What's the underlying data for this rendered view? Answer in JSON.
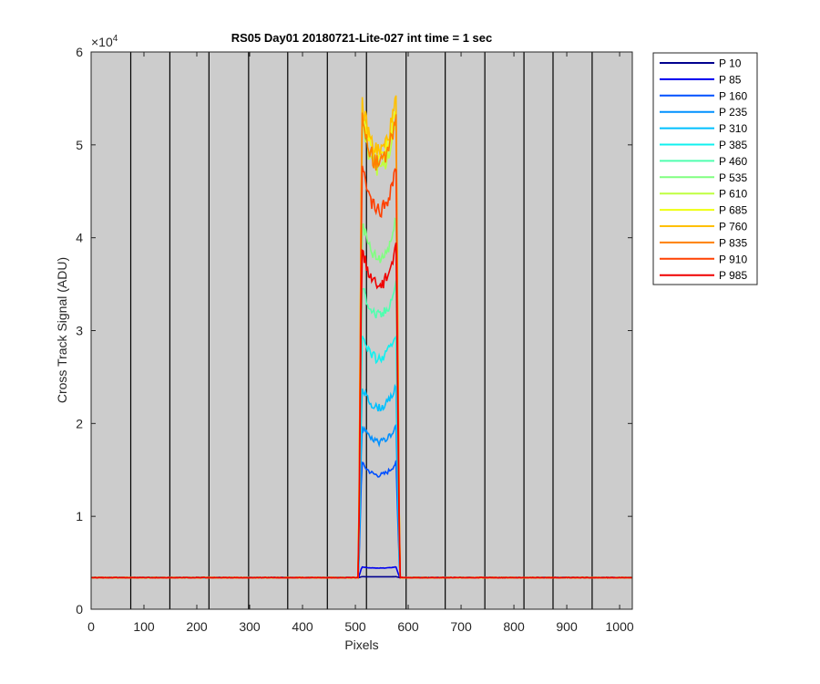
{
  "chart_data": {
    "type": "line",
    "title": "RS05 Day01 20180721-Lite-027 int time = 1 sec",
    "xlabel": "Pixels",
    "ylabel": "Cross Track Signal (ADU)",
    "xlim": [
      0,
      1024
    ],
    "ylim": [
      0,
      60000
    ],
    "xticks": [
      0,
      100,
      200,
      300,
      400,
      500,
      600,
      700,
      800,
      900,
      1000
    ],
    "yticks": [
      0,
      10000,
      20000,
      30000,
      40000,
      50000,
      60000
    ],
    "ytick_labels": [
      "0",
      "1",
      "2",
      "3",
      "4",
      "5",
      "6"
    ],
    "y_exponent_label": "×10",
    "y_exponent_power": "4",
    "background_color": "#cccccc",
    "grid": false,
    "legend_position": "outside-right",
    "vertical_lines_x": [
      75,
      149,
      223,
      298,
      372,
      447,
      521,
      596,
      670,
      745,
      819,
      874,
      948
    ],
    "plateau_x": [
      512,
      577
    ],
    "baseline": 3400,
    "series": [
      {
        "name": "P 10",
        "color": "#00008f",
        "plateau": 3500
      },
      {
        "name": "P 85",
        "color": "#0000ef",
        "plateau": 4500
      },
      {
        "name": "P 160",
        "color": "#0050ff",
        "plateau": 15300
      },
      {
        "name": "P 235",
        "color": "#0090ff",
        "plateau": 19100
      },
      {
        "name": "P 310",
        "color": "#00c0ff",
        "plateau": 23100
      },
      {
        "name": "P 385",
        "color": "#10f0ef",
        "plateau": 28700
      },
      {
        "name": "P 460",
        "color": "#50ffaf",
        "plateau": 33700
      },
      {
        "name": "P 535",
        "color": "#80ff80",
        "plateau": 40300
      },
      {
        "name": "P 610",
        "color": "#bfff40",
        "plateau": 50800
      },
      {
        "name": "P 685",
        "color": "#efff10",
        "plateau": 52000
      },
      {
        "name": "P 760",
        "color": "#ffc000",
        "plateau": 52700
      },
      {
        "name": "P 835",
        "color": "#ff8000",
        "plateau": 51300
      },
      {
        "name": "P 910",
        "color": "#ff4000",
        "plateau": 46000
      },
      {
        "name": "P 985",
        "color": "#ef0000",
        "plateau": 37400
      }
    ]
  }
}
